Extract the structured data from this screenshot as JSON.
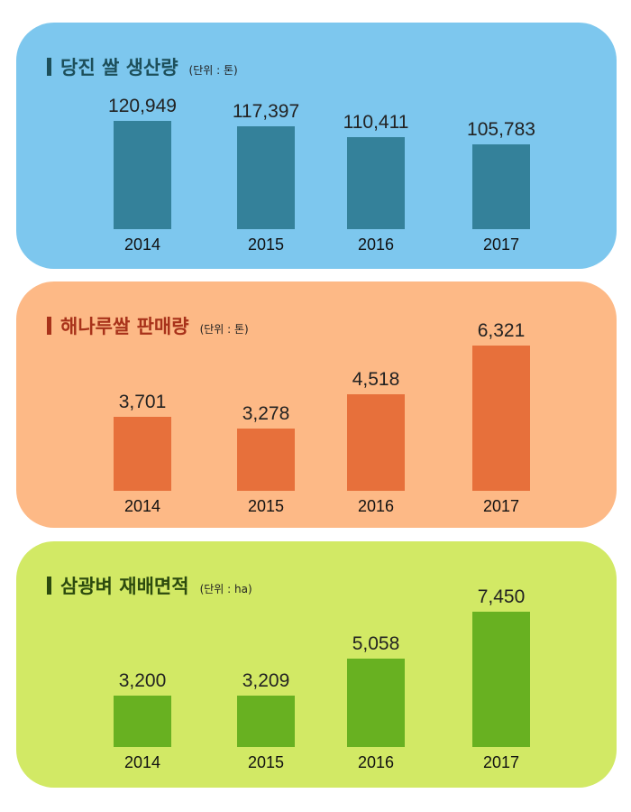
{
  "chart_data": [
    {
      "type": "bar",
      "title": "당진 쌀 생산량",
      "unit": "(단위 : 톤)",
      "categories": [
        "2014",
        "2015",
        "2016",
        "2017"
      ],
      "values": [
        120949,
        117397,
        110411,
        105783
      ],
      "value_labels": [
        "120,949",
        "117,397",
        "110,411",
        "105,783"
      ],
      "colors": {
        "panel": "#7dc7ee",
        "bar": "#34819a",
        "title": "#1d4f5a",
        "mark": "#1d4f5a"
      }
    },
    {
      "type": "bar",
      "title": "해나루쌀 판매량",
      "unit": "(단위 : 톤)",
      "categories": [
        "2014",
        "2015",
        "2016",
        "2017"
      ],
      "values": [
        3701,
        3278,
        4518,
        6321
      ],
      "value_labels": [
        "3,701",
        "3,278",
        "4,518",
        "6,321"
      ],
      "colors": {
        "panel": "#fdb986",
        "bar": "#e7703b",
        "title": "#a8321a",
        "mark": "#a8321a"
      }
    },
    {
      "type": "bar",
      "title": "삼광벼 재배면적",
      "unit": "(단위 : ha)",
      "categories": [
        "2014",
        "2015",
        "2016",
        "2017"
      ],
      "values": [
        3200,
        3209,
        5058,
        7450
      ],
      "value_labels": [
        "3,200",
        "3,209",
        "5,058",
        "7,450"
      ],
      "colors": {
        "panel": "#d2e965",
        "bar": "#68b121",
        "title": "#2c4a0e",
        "mark": "#2c4a0e"
      }
    }
  ]
}
